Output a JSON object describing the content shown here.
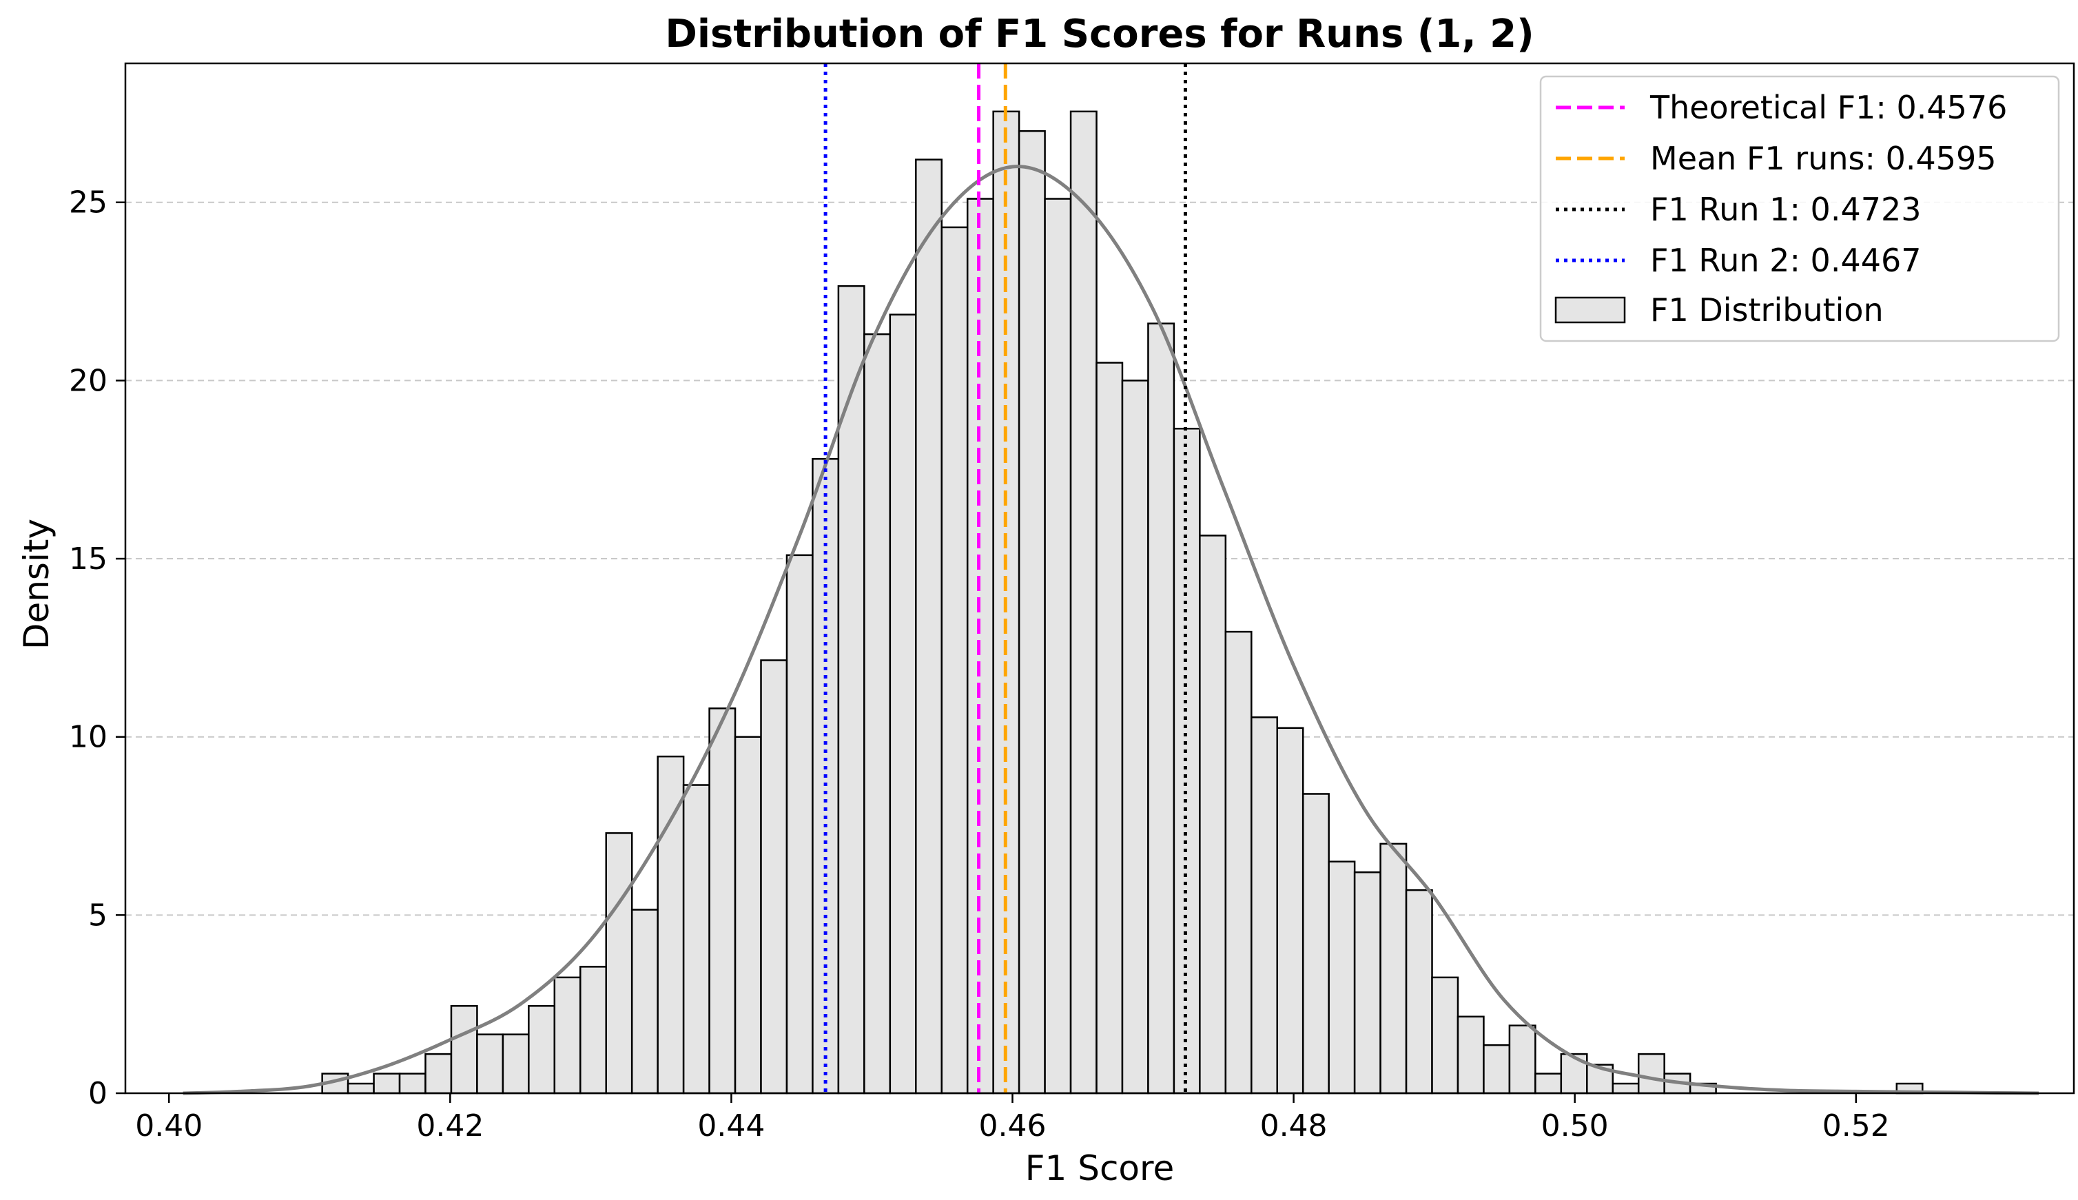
{
  "chart_data": {
    "type": "bar",
    "title": "Distribution of F1 Scores for Runs (1, 2)",
    "xlabel": "F1 Score",
    "ylabel": "Density",
    "xlim": [
      0.3969,
      0.5355
    ],
    "ylim": [
      0,
      28.9
    ],
    "xticks": [
      0.4,
      0.42,
      0.44,
      0.46,
      0.48,
      0.5,
      0.52
    ],
    "xtick_labels": [
      "0.40",
      "0.42",
      "0.44",
      "0.46",
      "0.48",
      "0.50",
      "0.52"
    ],
    "yticks": [
      0,
      5,
      10,
      15,
      20,
      25
    ],
    "ytick_labels": [
      "0",
      "5",
      "10",
      "15",
      "20",
      "25"
    ],
    "grid": "horizontal dashed",
    "legend_position": "upper right",
    "histogram": {
      "name": "F1 Distribution",
      "bin_start": 0.4109,
      "bin_width": 0.001836,
      "densities": [
        0.55,
        0.27,
        0.55,
        0.55,
        1.1,
        2.45,
        1.65,
        1.65,
        2.45,
        3.25,
        3.55,
        7.3,
        5.15,
        9.45,
        8.65,
        10.8,
        10.0,
        12.15,
        15.1,
        17.8,
        22.65,
        21.3,
        21.85,
        26.2,
        24.3,
        25.1,
        27.55,
        27.0,
        25.1,
        27.55,
        20.5,
        20.0,
        21.6,
        18.65,
        15.65,
        12.95,
        10.55,
        10.25,
        8.4,
        6.5,
        6.2,
        7.0,
        5.7,
        3.25,
        2.15,
        1.35,
        1.9,
        0.55,
        1.1,
        0.8,
        0.27,
        1.1,
        0.55,
        0.27,
        0,
        0,
        0,
        0,
        0,
        0,
        0,
        0.27
      ],
      "fill_color": "#e5e5e5",
      "edge_color": "#000000"
    },
    "kde": {
      "color": "#808080",
      "x": [
        0.401,
        0.405,
        0.41,
        0.415,
        0.42,
        0.425,
        0.43,
        0.435,
        0.44,
        0.445,
        0.45,
        0.455,
        0.46,
        0.465,
        0.47,
        0.475,
        0.48,
        0.485,
        0.49,
        0.495,
        0.5,
        0.505,
        0.51,
        0.515,
        0.52,
        0.525,
        0.53,
        0.533
      ],
      "y": [
        0.0,
        0.05,
        0.2,
        0.7,
        1.5,
        2.5,
        4.3,
        7.2,
        11.0,
        15.8,
        21.1,
        24.6,
        26.0,
        25.0,
        22.0,
        17.0,
        12.0,
        8.0,
        5.5,
        2.6,
        1.0,
        0.45,
        0.2,
        0.08,
        0.05,
        0.03,
        0.01,
        0.0
      ]
    },
    "reference_lines": [
      {
        "label": "Theoretical F1: 0.4576",
        "x": 0.4576,
        "color": "#ff00ff",
        "style": "dashed"
      },
      {
        "label": "Mean F1 runs: 0.4595",
        "x": 0.4595,
        "color": "#ffa500",
        "style": "dashed"
      },
      {
        "label": "F1 Run 1: 0.4723",
        "x": 0.4723,
        "color": "#000000",
        "style": "dotted"
      },
      {
        "label": "F1 Run 2: 0.4467",
        "x": 0.4467,
        "color": "#0000ff",
        "style": "dotted"
      }
    ]
  }
}
